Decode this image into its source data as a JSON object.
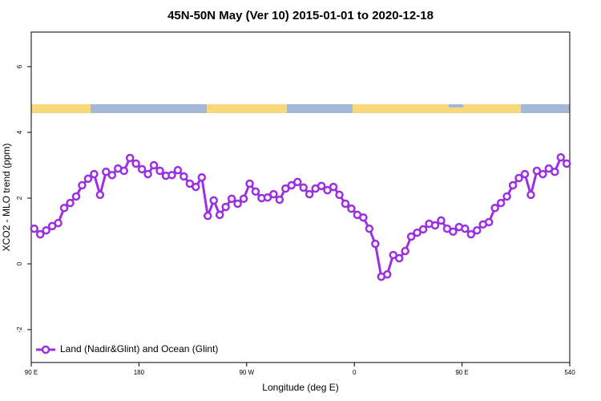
{
  "chart_data": {
    "type": "line",
    "title": "45N-50N May (Ver 10)   2015-01-01 to 2020-12-18",
    "xlabel": "Longitude (deg E)",
    "ylabel": "XCO2 - MLO trend (ppm)",
    "xlim": [
      90,
      540
    ],
    "ylim": [
      -3,
      7.05
    ],
    "xticks": [
      {
        "value": 90,
        "label": "90 E"
      },
      180,
      {
        "value": 270,
        "label": "90 W"
      },
      {
        "value": 360,
        "label": "0"
      },
      {
        "value": 450,
        "label": "90 E"
      },
      540
    ],
    "yticks": [
      -2,
      0,
      2,
      4,
      6
    ],
    "legend": "bottom-left",
    "x": [
      92.5,
      97.5,
      102.5,
      107.5,
      112.5,
      117.5,
      122.5,
      127.5,
      132.5,
      137.5,
      142.5,
      147.5,
      152.5,
      157.5,
      162.5,
      167.5,
      172.5,
      177.5,
      182.5,
      187.5,
      192.5,
      197.5,
      202.5,
      207.5,
      212.5,
      217.5,
      222.5,
      227.5,
      232.5,
      237.5,
      242.5,
      247.5,
      252.5,
      257.5,
      262.5,
      267.5,
      272.5,
      277.5,
      282.5,
      287.5,
      292.5,
      297.5,
      302.5,
      307.5,
      312.5,
      317.5,
      322.5,
      327.5,
      332.5,
      337.5,
      342.5,
      347.5,
      352.5,
      357.5,
      362.5,
      367.5,
      372.5,
      377.5,
      382.5,
      387.5,
      392.5,
      397.5,
      402.5,
      407.5,
      412.5,
      417.5,
      422.5,
      427.5,
      432.5,
      437.5,
      442.5,
      447.5,
      452.5,
      457.5,
      462.5,
      467.5,
      472.5,
      477.5,
      482.5,
      487.5,
      492.5,
      497.5,
      502.5,
      507.5,
      512.5,
      517.5,
      522.5,
      527.5,
      532.5,
      537.5
    ],
    "series": [
      {
        "name": "Land (Nadir&Glint) and Ocean (Glint)",
        "color": "#9b30e0",
        "values": [
          1.07,
          0.9,
          1.02,
          1.15,
          1.24,
          1.7,
          1.85,
          2.05,
          2.39,
          2.59,
          2.73,
          2.1,
          2.8,
          2.7,
          2.9,
          2.83,
          3.22,
          3.05,
          2.88,
          2.73,
          3.0,
          2.83,
          2.68,
          2.7,
          2.85,
          2.66,
          2.44,
          2.34,
          2.63,
          1.46,
          1.93,
          1.49,
          1.73,
          1.98,
          1.83,
          1.98,
          2.44,
          2.2,
          2.0,
          2.02,
          2.12,
          1.95,
          2.29,
          2.39,
          2.49,
          2.32,
          2.12,
          2.29,
          2.37,
          2.24,
          2.34,
          2.1,
          1.83,
          1.68,
          1.49,
          1.41,
          1.07,
          0.61,
          -0.39,
          -0.32,
          0.27,
          0.17,
          0.39,
          0.83,
          0.95,
          1.05,
          1.22,
          1.17,
          1.32,
          1.07,
          0.98,
          1.12,
          1.07,
          0.9,
          1.02,
          1.2,
          1.27,
          1.7,
          1.85,
          2.05,
          2.39,
          2.61,
          2.73,
          2.1,
          2.83,
          2.73,
          2.9,
          2.8,
          3.24,
          3.05
        ]
      }
    ]
  }
}
